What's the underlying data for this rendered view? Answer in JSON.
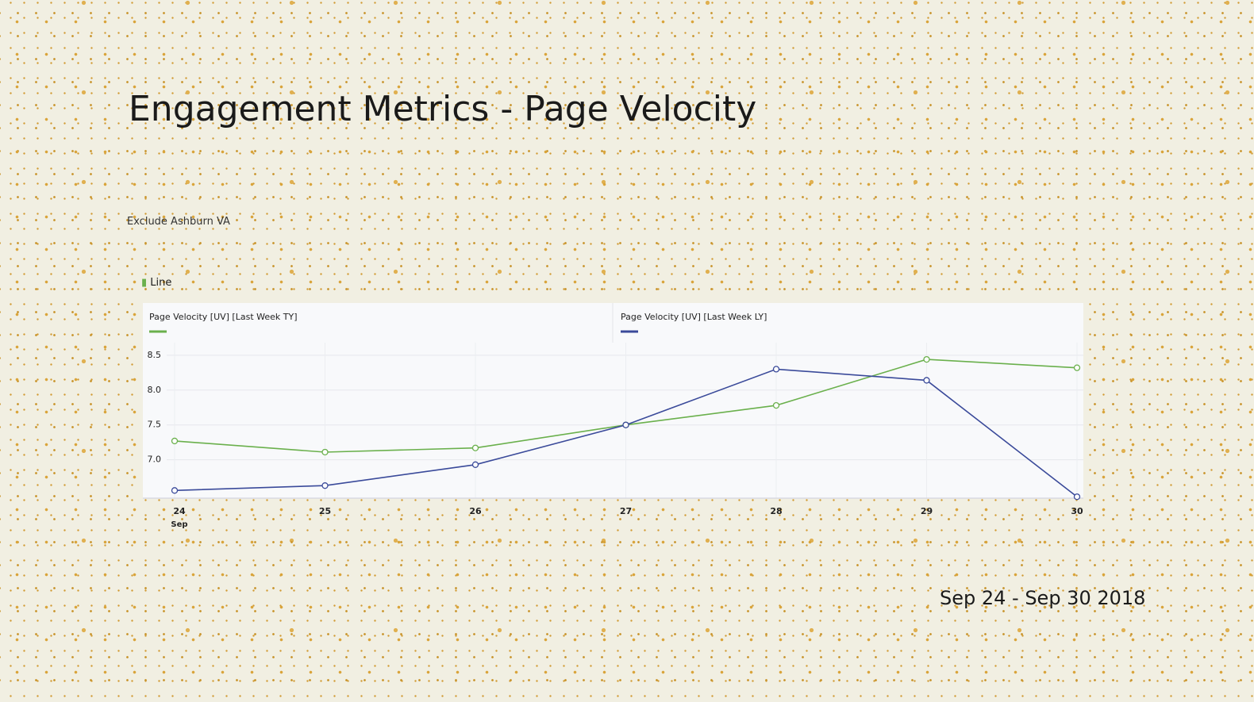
{
  "slide": {
    "title": "Engagement Metrics - Page Velocity",
    "note": "Exclude Ashburn VA",
    "chart_label": "Line",
    "date_range": "Sep 24 - Sep 30 2018"
  },
  "chart_data": {
    "type": "line",
    "categories": [
      "24",
      "25",
      "26",
      "27",
      "28",
      "29",
      "30"
    ],
    "x_period_label": "Sep",
    "series": [
      {
        "name": "Page Velocity [UV] [Last Week TY]",
        "color": "#6ab04c",
        "values": [
          7.27,
          7.11,
          7.17,
          7.5,
          7.78,
          8.44,
          8.32
        ]
      },
      {
        "name": "Page Velocity [UV] [Last Week LY]",
        "color": "#3a4a9a",
        "values": [
          6.56,
          6.63,
          6.93,
          7.5,
          8.3,
          8.14,
          6.47
        ]
      }
    ],
    "ylim": [
      6.45,
      8.68
    ],
    "yticks": [
      {
        "value": 7,
        "label": "7.0"
      },
      7.5,
      {
        "value": 8,
        "label": "8.0"
      },
      8.5
    ],
    "grid": true
  }
}
